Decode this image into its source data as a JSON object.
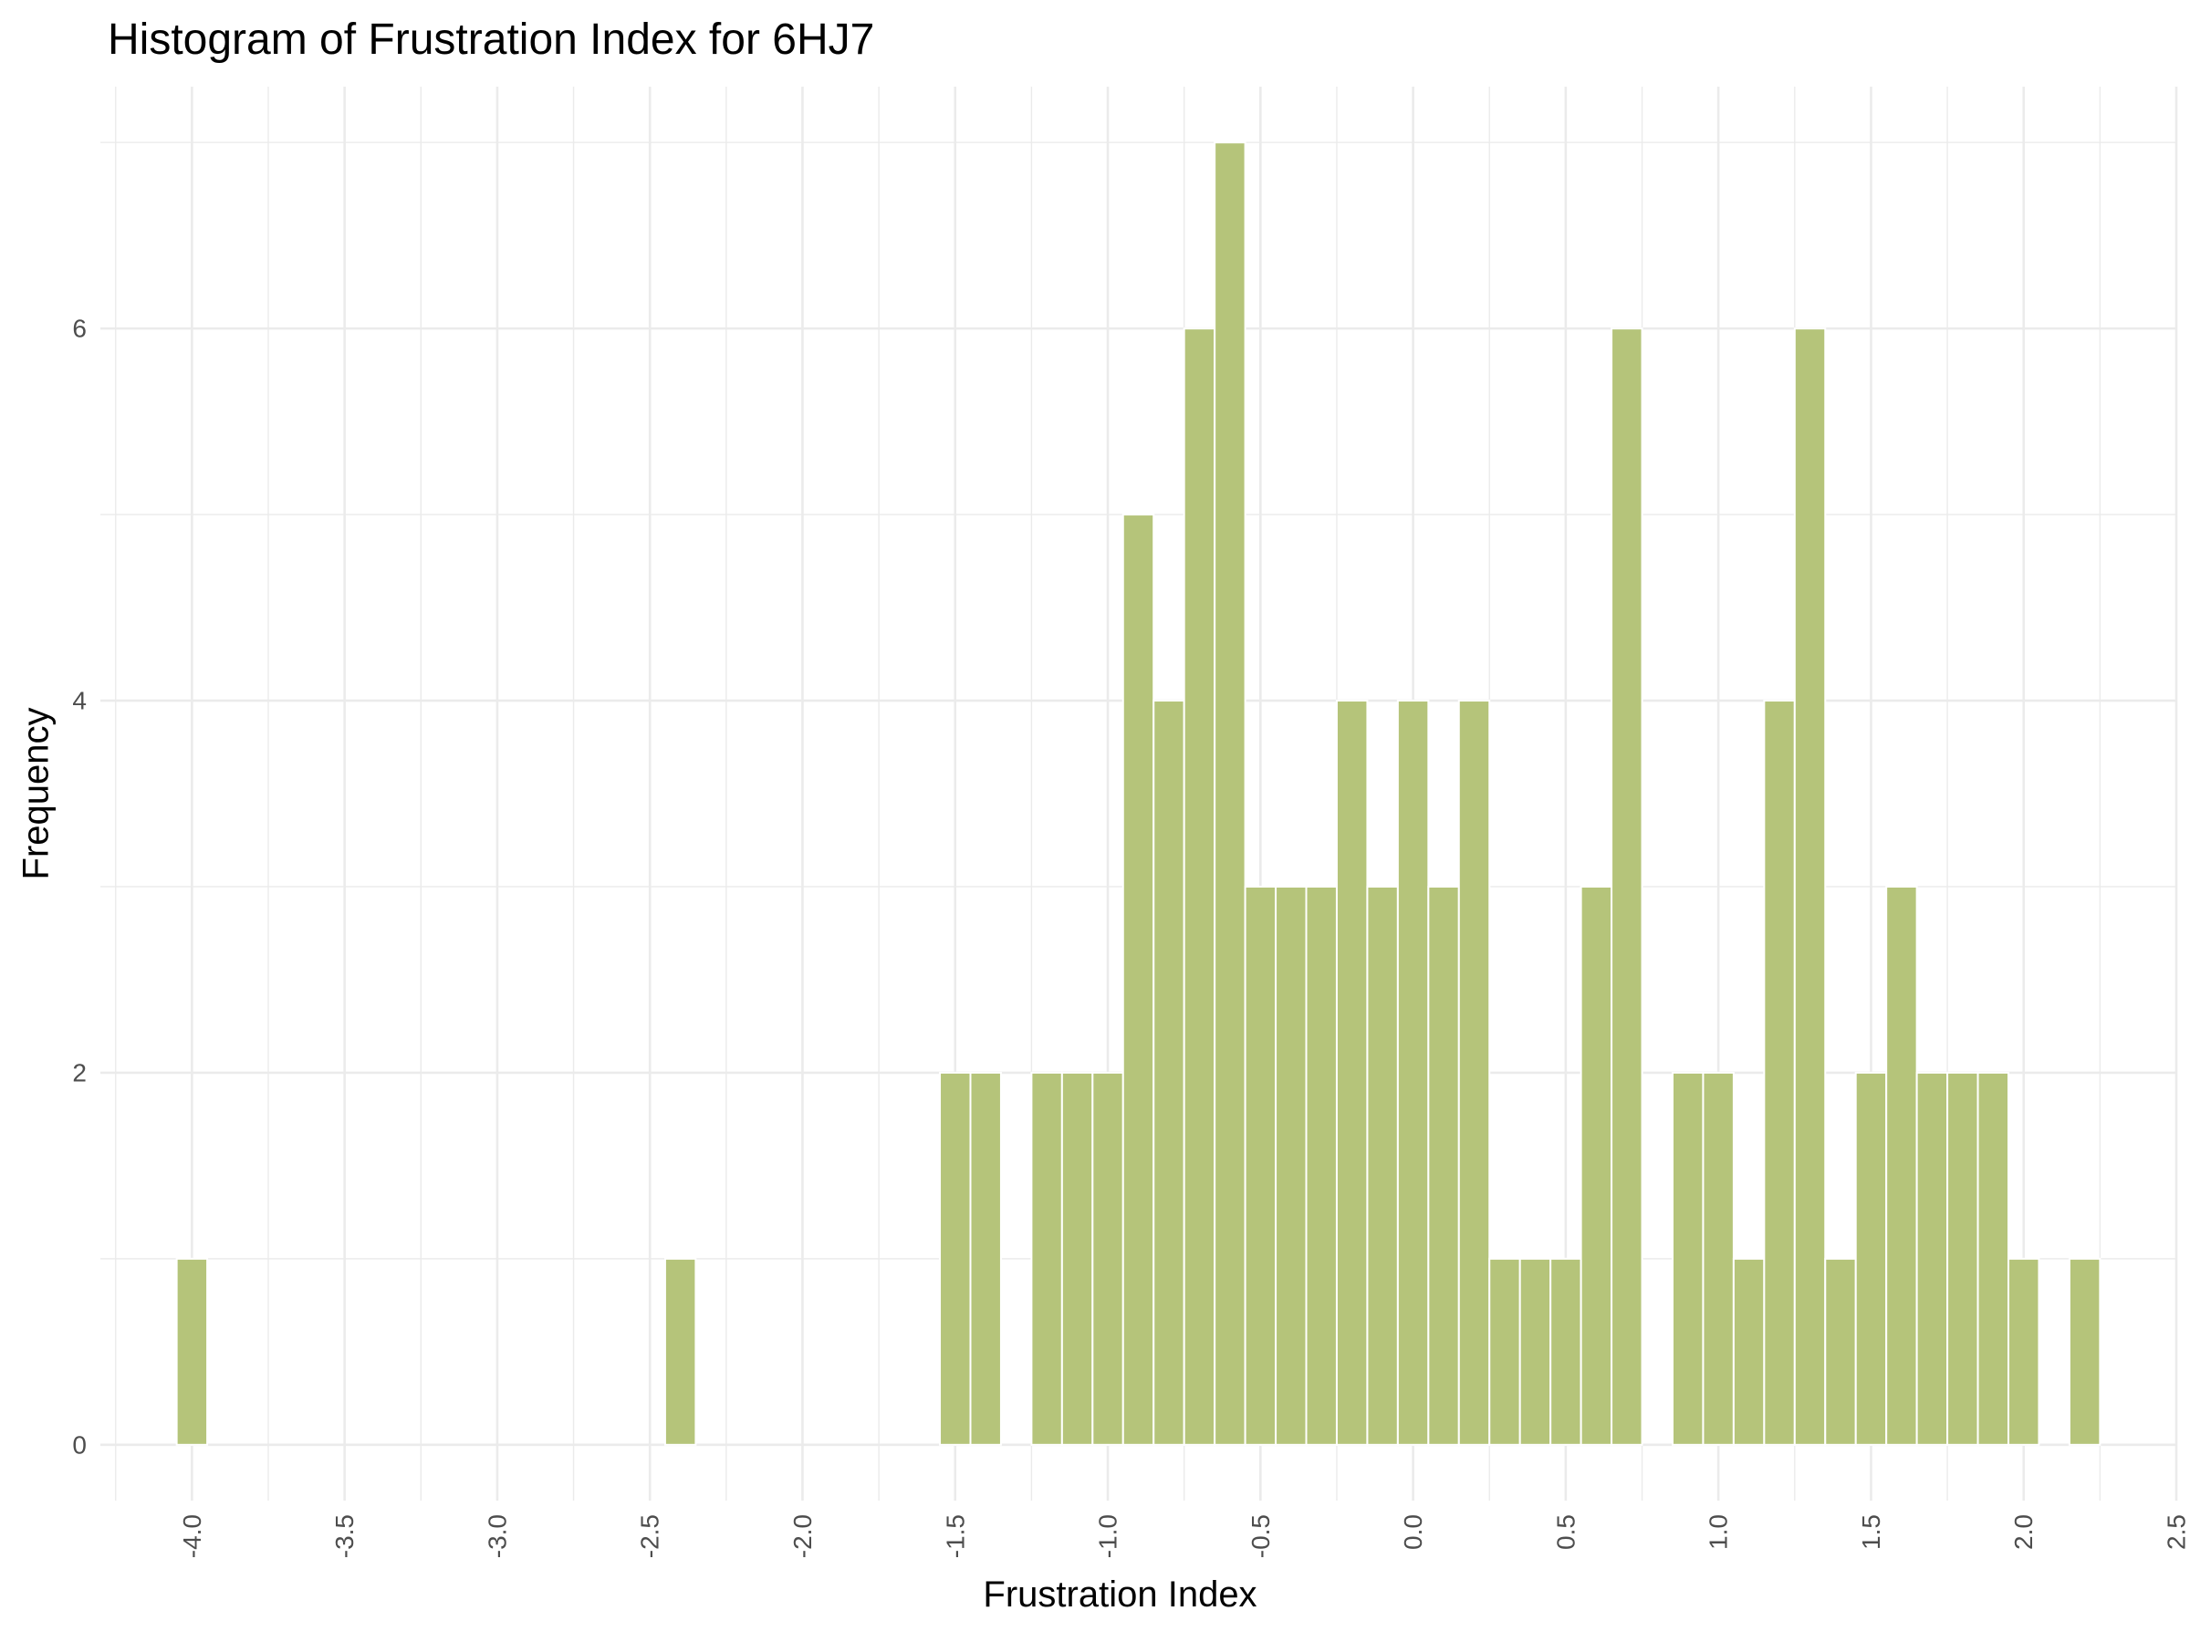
{
  "chart_data": {
    "type": "bar",
    "title": "Histogram of Frustration Index for 6HJ7",
    "xlabel": "Frustration Index",
    "ylabel": "Frequency",
    "bin_width": 0.1,
    "x": [
      -4.0,
      -2.4,
      -1.5,
      -1.4,
      -1.2,
      -1.1,
      -1.0,
      -0.9,
      -0.8,
      -0.7,
      -0.6,
      -0.5,
      -0.4,
      -0.3,
      -0.2,
      -0.1,
      0.0,
      0.1,
      0.2,
      0.3,
      0.4,
      0.5,
      0.6,
      0.7,
      0.9,
      1.0,
      1.1,
      1.2,
      1.3,
      1.4,
      1.5,
      1.6,
      1.7,
      1.8,
      1.9,
      2.0,
      2.2
    ],
    "values": [
      1,
      1,
      2,
      2,
      2,
      2,
      2,
      5,
      4,
      6,
      7,
      3,
      3,
      3,
      4,
      3,
      4,
      3,
      4,
      1,
      1,
      1,
      3,
      6,
      2,
      2,
      1,
      4,
      6,
      1,
      2,
      3,
      2,
      2,
      2,
      1,
      1
    ],
    "xlim": [
      -4.3,
      2.5
    ],
    "ylim": [
      -0.3,
      7.3
    ],
    "x_ticks": [
      "-4.0",
      "-3.5",
      "-3.0",
      "-2.5",
      "-2.0",
      "-1.5",
      "-1.0",
      "-0.5",
      "0.0",
      "0.5",
      "1.0",
      "1.5",
      "2.0",
      "2.5"
    ],
    "y_ticks": [
      "0",
      "2",
      "4",
      "6"
    ],
    "grid": true,
    "legend": "none",
    "bar_color": "#b5c47a",
    "grid_color": "#ebebeb"
  }
}
